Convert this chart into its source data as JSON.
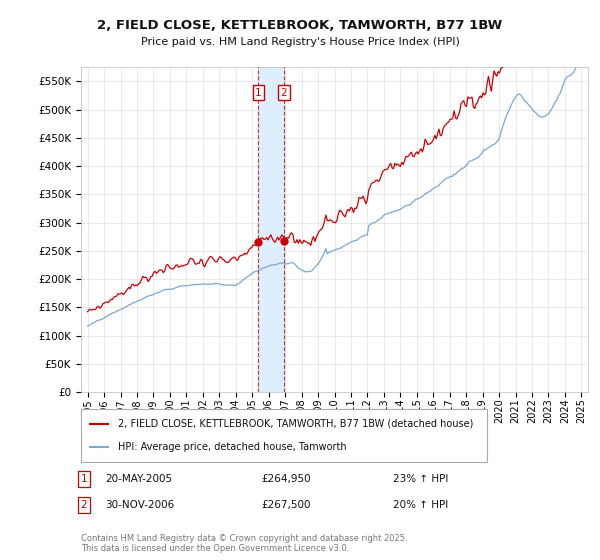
{
  "title": "2, FIELD CLOSE, KETTLEBROOK, TAMWORTH, B77 1BW",
  "subtitle": "Price paid vs. HM Land Registry's House Price Index (HPI)",
  "legend_line1": "2, FIELD CLOSE, KETTLEBROOK, TAMWORTH, B77 1BW (detached house)",
  "legend_line2": "HPI: Average price, detached house, Tamworth",
  "transaction1_date": "20-MAY-2005",
  "transaction1_price": "£264,950",
  "transaction1_hpi": "23% ↑ HPI",
  "transaction2_date": "30-NOV-2006",
  "transaction2_price": "£267,500",
  "transaction2_hpi": "20% ↑ HPI",
  "transaction1_x": 2005.38,
  "transaction2_x": 2006.92,
  "t1_price_val": 264950,
  "t2_price_val": 267500,
  "ylim": [
    0,
    575000
  ],
  "yticks": [
    0,
    50000,
    100000,
    150000,
    200000,
    250000,
    300000,
    350000,
    400000,
    450000,
    500000,
    550000
  ],
  "footer": "Contains HM Land Registry data © Crown copyright and database right 2025.\nThis data is licensed under the Open Government Licence v3.0.",
  "red_color": "#cc0000",
  "blue_color": "#7aa8d2",
  "shade_color": "#ddeeff",
  "background_color": "#ffffff",
  "grid_color": "#e0e0e0"
}
